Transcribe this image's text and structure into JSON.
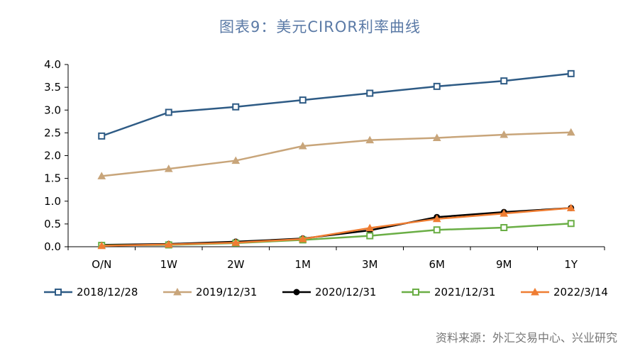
{
  "title": "图表9：美元CIROR利率曲线",
  "source": "资料来源：外汇交易中心、兴业研究",
  "chart_data": {
    "type": "line",
    "categories": [
      "O/N",
      "1W",
      "2W",
      "1M",
      "3M",
      "6M",
      "9M",
      "1Y"
    ],
    "ylim": [
      0,
      4.0
    ],
    "yticks": [
      "0.0",
      "0.5",
      "1.0",
      "1.5",
      "2.0",
      "2.5",
      "3.0",
      "3.5",
      "4.0"
    ],
    "grid": false,
    "legend_position": "bottom",
    "series": [
      {
        "name": "2018/12/28",
        "color": "#2e5b85",
        "marker": "square-open",
        "values": [
          2.43,
          2.95,
          3.07,
          3.22,
          3.37,
          3.52,
          3.64,
          3.8
        ]
      },
      {
        "name": "2019/12/31",
        "color": "#c8a57a",
        "marker": "triangle",
        "values": [
          1.55,
          1.71,
          1.89,
          2.21,
          2.34,
          2.39,
          2.46,
          2.51
        ]
      },
      {
        "name": "2020/12/31",
        "color": "#000000",
        "marker": "circle",
        "values": [
          0.04,
          0.06,
          0.11,
          0.18,
          0.36,
          0.65,
          0.76,
          0.85
        ]
      },
      {
        "name": "2021/12/31",
        "color": "#6aae45",
        "marker": "square-open",
        "values": [
          0.03,
          0.04,
          0.08,
          0.15,
          0.24,
          0.37,
          0.42,
          0.51
        ]
      },
      {
        "name": "2022/3/14",
        "color": "#ef7d32",
        "marker": "triangle",
        "values": [
          0.02,
          0.05,
          0.09,
          0.17,
          0.41,
          0.61,
          0.73,
          0.85
        ]
      }
    ]
  }
}
